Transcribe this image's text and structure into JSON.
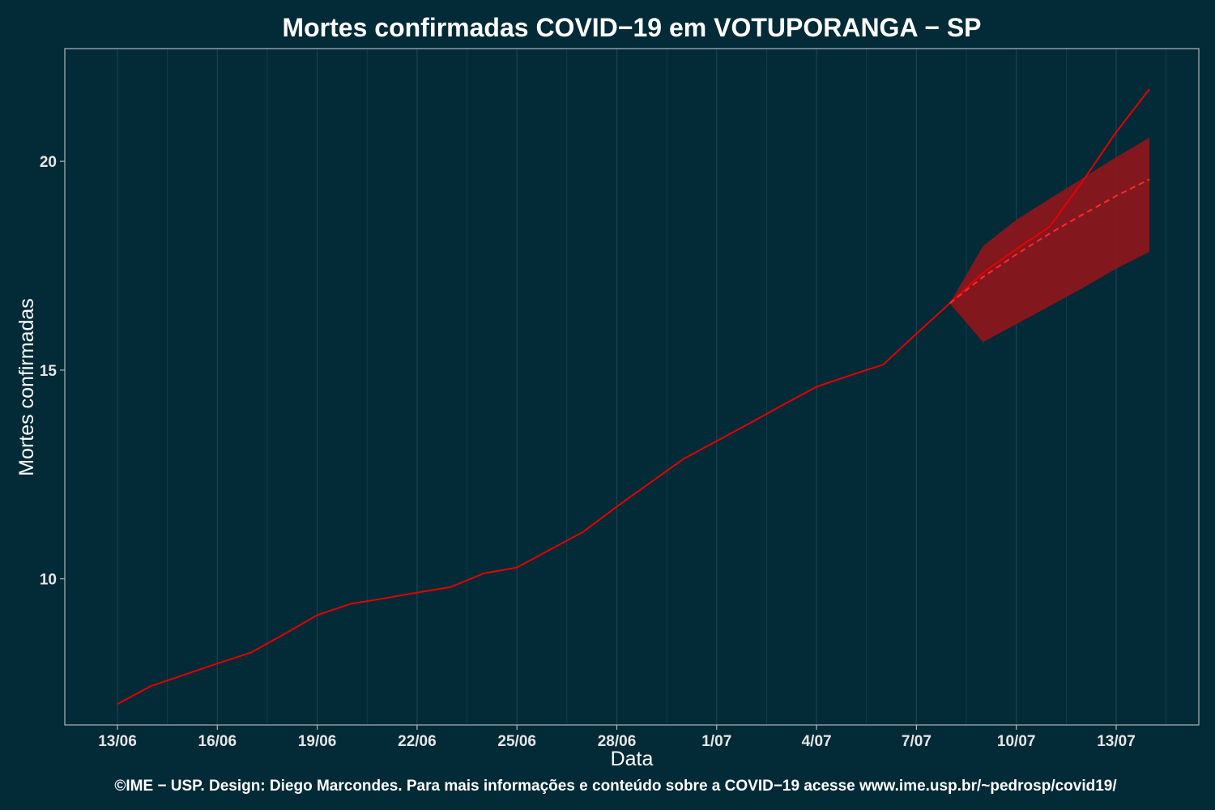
{
  "chart_data": {
    "type": "line",
    "title": "Mortes confirmadas COVID−19 em VOTUPORANGA − SP",
    "xlabel": "Data",
    "ylabel": "Mortes confirmadas",
    "caption": "©IME − USP. Design: Diego Marcondes. Para mais informações e conteúdo sobre a COVID−19 acesse www.ime.usp.br/~pedrosp/covid19/",
    "x_dates": [
      "13/06",
      "14/06",
      "15/06",
      "16/06",
      "17/06",
      "18/06",
      "19/06",
      "20/06",
      "21/06",
      "22/06",
      "23/06",
      "24/06",
      "25/06",
      "26/06",
      "27/06",
      "28/06",
      "29/06",
      "30/06",
      "1/07",
      "2/07",
      "3/07",
      "4/07",
      "5/07",
      "6/07",
      "7/07",
      "8/07",
      "9/07",
      "10/07",
      "11/07",
      "12/07",
      "13/07",
      "14/07"
    ],
    "x_ticks": [
      "13/06",
      "16/06",
      "19/06",
      "22/06",
      "25/06",
      "28/06",
      "1/07",
      "4/07",
      "7/07",
      "10/07",
      "13/07"
    ],
    "ylim": [
      6.5,
      22.7
    ],
    "y_ticks": [
      10,
      15,
      20
    ],
    "grid": true,
    "colors": {
      "background": "#022a37",
      "observed": "#e60000",
      "forecast": "#ff2a2a",
      "band": "#8a161c",
      "grid": "#1a4350",
      "text": "#ffffff",
      "tick_text": "#e6e6e6",
      "axis": "#a8b8bd"
    },
    "series": [
      {
        "role": "observed",
        "x": [
          "13/06",
          "14/06",
          "15/06",
          "16/06",
          "17/06",
          "18/06",
          "19/06",
          "20/06",
          "21/06",
          "22/06",
          "23/06",
          "24/06",
          "25/06",
          "26/06",
          "27/06",
          "28/06",
          "29/06",
          "30/06",
          "1/07",
          "2/07",
          "3/07",
          "4/07",
          "5/07",
          "6/07",
          "7/07",
          "8/07",
          "9/07",
          "10/07",
          "11/07",
          "12/07",
          "13/07",
          "14/07"
        ],
        "values": [
          7.0,
          7.43,
          7.7,
          7.97,
          8.23,
          8.67,
          9.13,
          9.4,
          9.53,
          9.67,
          9.8,
          10.13,
          10.27,
          10.7,
          11.13,
          11.73,
          12.3,
          12.87,
          13.3,
          13.73,
          14.17,
          14.6,
          14.87,
          15.13,
          15.87,
          16.6,
          17.33,
          17.9,
          18.43,
          19.53,
          20.7,
          21.73
        ]
      },
      {
        "role": "forecast",
        "x": [
          "8/07",
          "9/07",
          "10/07",
          "11/07",
          "12/07",
          "13/07",
          "14/07"
        ],
        "values": [
          16.6,
          17.23,
          17.77,
          18.27,
          18.73,
          19.17,
          19.57
        ]
      }
    ],
    "band": {
      "x": [
        "8/07",
        "9/07",
        "10/07",
        "11/07",
        "12/07",
        "13/07",
        "14/07"
      ],
      "upper": [
        16.6,
        17.97,
        18.6,
        19.1,
        19.6,
        20.1,
        20.57
      ],
      "lower": [
        16.6,
        15.67,
        16.1,
        16.53,
        16.97,
        17.43,
        17.83
      ]
    }
  }
}
